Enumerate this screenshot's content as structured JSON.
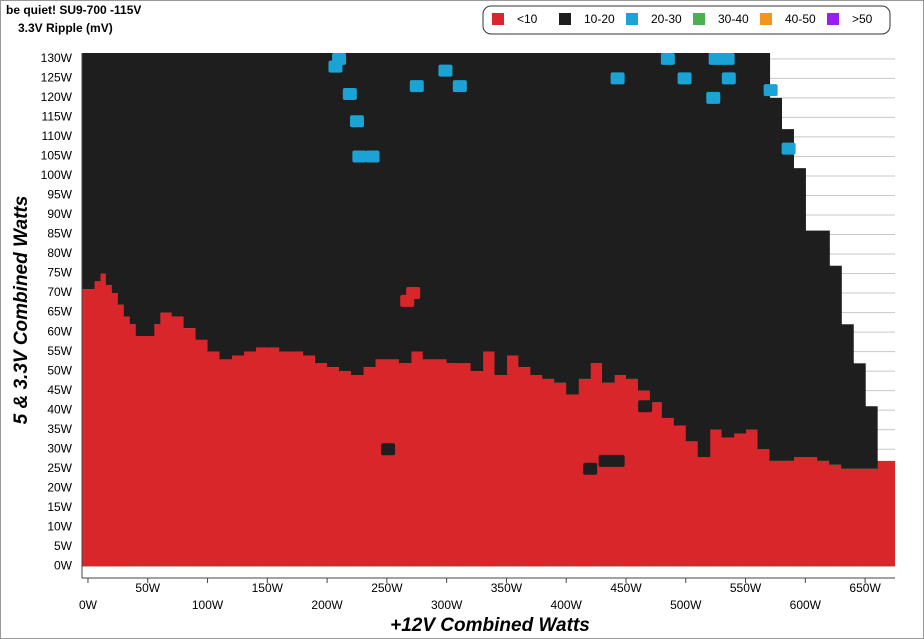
{
  "chart_data": {
    "type": "region-map",
    "title": "be quiet! SU9-700 -115V",
    "subtitle": "3.3V Ripple (mV)",
    "x_label": "+12V Combined Watts",
    "y_label": "5 & 3.3V Combined Watts",
    "xlim": [
      -5,
      675
    ],
    "ylim": [
      -3,
      131.5
    ],
    "xticks": [
      {
        "value": 0,
        "label": "0W"
      },
      {
        "value": 50,
        "label": "50W"
      },
      {
        "value": 100,
        "label": "100W"
      },
      {
        "value": 150,
        "label": "150W"
      },
      {
        "value": 200,
        "label": "200W"
      },
      {
        "value": 250,
        "label": "250W"
      },
      {
        "value": 300,
        "label": "300W"
      },
      {
        "value": 350,
        "label": "350W"
      },
      {
        "value": 400,
        "label": "400W"
      },
      {
        "value": 450,
        "label": "450W"
      },
      {
        "value": 500,
        "label": "500W"
      },
      {
        "value": 550,
        "label": "550W"
      },
      {
        "value": 600,
        "label": "600W"
      },
      {
        "value": 650,
        "label": "650W"
      }
    ],
    "yticks": [
      {
        "value": 0,
        "label": "0W"
      },
      {
        "value": 5,
        "label": "5W"
      },
      {
        "value": 10,
        "label": "10W"
      },
      {
        "value": 15,
        "label": "15W"
      },
      {
        "value": 20,
        "label": "20W"
      },
      {
        "value": 25,
        "label": "25W"
      },
      {
        "value": 30,
        "label": "30W"
      },
      {
        "value": 35,
        "label": "35W"
      },
      {
        "value": 40,
        "label": "40W"
      },
      {
        "value": 45,
        "label": "45W"
      },
      {
        "value": 50,
        "label": "50W"
      },
      {
        "value": 55,
        "label": "55W"
      },
      {
        "value": 60,
        "label": "60W"
      },
      {
        "value": 65,
        "label": "65W"
      },
      {
        "value": 70,
        "label": "70W"
      },
      {
        "value": 75,
        "label": "75W"
      },
      {
        "value": 80,
        "label": "80W"
      },
      {
        "value": 85,
        "label": "85W"
      },
      {
        "value": 90,
        "label": "90W"
      },
      {
        "value": 95,
        "label": "95W"
      },
      {
        "value": 100,
        "label": "100W"
      },
      {
        "value": 105,
        "label": "105W"
      },
      {
        "value": 110,
        "label": "110W"
      },
      {
        "value": 115,
        "label": "115W"
      },
      {
        "value": 120,
        "label": "120W"
      },
      {
        "value": 125,
        "label": "125W"
      },
      {
        "value": 130,
        "label": "130W"
      }
    ],
    "grid": true,
    "legend": "top-right",
    "x": [
      -5,
      5,
      10,
      15,
      20,
      25,
      30,
      35,
      40,
      50,
      55,
      60,
      70,
      80,
      90,
      100,
      110,
      120,
      130,
      140,
      150,
      160,
      170,
      180,
      190,
      200,
      210,
      220,
      230,
      240,
      250,
      260,
      270,
      280,
      290,
      300,
      310,
      320,
      330,
      340,
      350,
      360,
      370,
      380,
      390,
      400,
      410,
      420,
      430,
      440,
      450,
      460,
      470,
      480,
      490,
      500,
      510,
      520,
      530,
      540,
      550,
      560,
      570,
      580,
      590,
      600,
      610,
      620,
      630,
      640,
      650,
      660,
      670
    ],
    "series": [
      {
        "name": "<10",
        "color": "#d9262b",
        "values": [
          71,
          73,
          75,
          72,
          70,
          67,
          64,
          62,
          59,
          59,
          62,
          65,
          64,
          61,
          58,
          55,
          53,
          54,
          55,
          56,
          56,
          55,
          55,
          54,
          52,
          51,
          50,
          49,
          51,
          53,
          53,
          52,
          55,
          53,
          53,
          52,
          52,
          50,
          55,
          49,
          54,
          51,
          49,
          48,
          47,
          44,
          48,
          52,
          47,
          49,
          48,
          45,
          42,
          38,
          36,
          32,
          28,
          35,
          33,
          34,
          35,
          30,
          27,
          27,
          28,
          28,
          27,
          26,
          25,
          25,
          25,
          27,
          27
        ],
        "cells": [
          [
            267,
            68
          ],
          [
            272,
            70
          ]
        ]
      },
      {
        "name": "10-20",
        "color": "#1e1e1e",
        "values": [
          61,
          59,
          57,
          60,
          62,
          65,
          68,
          70,
          73,
          73,
          70,
          67,
          68,
          71,
          74,
          77,
          79,
          78,
          77,
          76,
          76,
          77,
          77,
          78,
          80,
          81,
          82,
          83,
          81,
          79,
          79,
          80,
          77,
          79,
          79,
          80,
          80,
          82,
          77,
          83,
          78,
          81,
          83,
          84,
          85,
          88,
          84,
          80,
          85,
          83,
          84,
          87,
          90,
          94,
          96,
          100,
          104,
          97,
          99,
          98,
          97,
          102,
          93,
          85,
          74,
          58,
          59,
          51,
          37,
          27,
          16,
          0,
          0
        ],
        "cells": [
          [
            251,
            30
          ],
          [
            420,
            25
          ],
          [
            433,
            27
          ],
          [
            443,
            27
          ],
          [
            466,
            41
          ]
        ]
      },
      {
        "name": "20-30",
        "color": "#1aa3d4",
        "cells": [
          [
            207,
            128
          ],
          [
            210,
            130
          ],
          [
            219,
            121
          ],
          [
            225,
            114
          ],
          [
            227,
            105
          ],
          [
            238,
            105
          ],
          [
            275,
            123
          ],
          [
            299,
            127
          ],
          [
            311,
            123
          ],
          [
            443,
            125
          ],
          [
            485,
            130
          ],
          [
            499,
            125
          ],
          [
            525,
            130
          ],
          [
            536,
            125
          ],
          [
            523,
            120
          ],
          [
            571,
            122
          ],
          [
            586,
            107
          ],
          [
            535,
            130
          ]
        ]
      },
      {
        "name": "30-40",
        "color": "#4cb050"
      },
      {
        "name": "40-50",
        "color": "#f0961e"
      },
      {
        "name": ">50",
        "color": "#9b1ef0"
      }
    ]
  }
}
